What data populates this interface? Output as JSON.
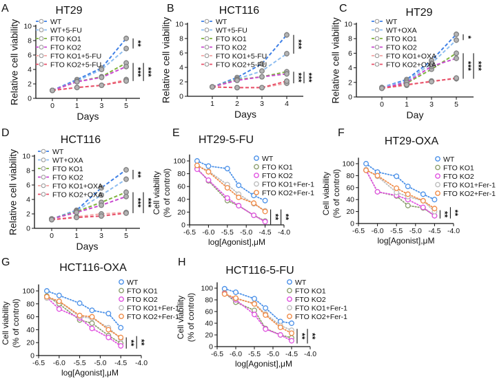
{
  "chart_data": [
    {
      "panel": "A",
      "type": "line",
      "title": "HT29",
      "xlabel": "Days",
      "ylabel": [
        "Relative cell viability"
      ],
      "x": [
        "0",
        "1",
        "3",
        "5"
      ],
      "ylim": [
        0,
        10
      ],
      "yticks": [
        0,
        2,
        4,
        6,
        8,
        10
      ],
      "series": [
        {
          "name": "WT",
          "color": "#3d7fe6",
          "values": [
            1.1,
            2.6,
            4.2,
            8.3
          ]
        },
        {
          "name": "WT+5-FU",
          "color": "#8dbdf0",
          "values": [
            1.1,
            2.4,
            4.0,
            6.9
          ]
        },
        {
          "name": "FTO KO1",
          "color": "#7db33a",
          "values": [
            1.1,
            2.3,
            3.0,
            4.9
          ]
        },
        {
          "name": "FTO KO2",
          "color": "#c948d0",
          "values": [
            1.1,
            2.3,
            2.9,
            4.4
          ]
        },
        {
          "name": "FTO KO1+5-FU",
          "color": "#f2a3a3",
          "values": [
            1.1,
            1.5,
            1.8,
            2.6
          ]
        },
        {
          "name": "FTO KO2+5-FU",
          "color": "#e8506a",
          "values": [
            1.1,
            1.5,
            1.8,
            2.4
          ]
        }
      ],
      "significance": [
        {
          "label": "**",
          "groups": [
            0,
            1
          ]
        },
        {
          "label": "***",
          "groups": [
            2,
            5
          ]
        },
        {
          "label": "***",
          "groups": [
            2,
            5
          ]
        }
      ]
    },
    {
      "panel": "B",
      "type": "line",
      "title": "HCT116",
      "xlabel": "Days",
      "ylabel": [
        "Relative cell viability"
      ],
      "x": [
        "1",
        "2",
        "3",
        "4"
      ],
      "ylim": [
        0,
        10
      ],
      "yticks": [
        0,
        2,
        4,
        6,
        8,
        10
      ],
      "series": [
        {
          "name": "WT",
          "color": "#3d7fe6",
          "values": [
            1.3,
            2.6,
            4.5,
            8.5
          ]
        },
        {
          "name": "WT+5-FU",
          "color": "#8dbdf0",
          "values": [
            1.3,
            2.4,
            3.5,
            5.9
          ]
        },
        {
          "name": "FTO KO1",
          "color": "#7db33a",
          "values": [
            1.3,
            2.3,
            2.7,
            3.4
          ]
        },
        {
          "name": "FTO KO2",
          "color": "#c948d0",
          "values": [
            1.3,
            2.2,
            2.7,
            3.1
          ]
        },
        {
          "name": "FTO KO1+5-FU",
          "color": "#f2a3a3",
          "values": [
            1.3,
            1.2,
            1.2,
            1.8
          ]
        },
        {
          "name": "FTO KO2+5-FU",
          "color": "#e8506a",
          "values": [
            1.3,
            1.2,
            1.2,
            2.1
          ]
        }
      ],
      "significance": [
        {
          "label": "***",
          "groups": [
            0,
            1
          ]
        },
        {
          "label": "***",
          "groups": [
            2,
            5
          ]
        },
        {
          "label": "***",
          "groups": [
            2,
            5
          ]
        }
      ]
    },
    {
      "panel": "C",
      "type": "line",
      "title": "HT29",
      "xlabel": "Day",
      "ylabel": [
        "Relative cell viability"
      ],
      "x": [
        "0",
        "1",
        "3",
        "5"
      ],
      "ylim": [
        0,
        10
      ],
      "yticks": [
        0,
        2,
        4,
        6,
        8,
        10
      ],
      "series": [
        {
          "name": "WT",
          "color": "#3d7fe6",
          "values": [
            1.3,
            2.4,
            5.0,
            8.6
          ]
        },
        {
          "name": "WT+OXA",
          "color": "#8dbdf0",
          "values": [
            1.3,
            2.2,
            4.6,
            7.8
          ]
        },
        {
          "name": "FTO KO1",
          "color": "#7db33a",
          "values": [
            1.2,
            1.9,
            3.8,
            6.0
          ]
        },
        {
          "name": "FTO KO2",
          "color": "#c948d0",
          "values": [
            1.2,
            2.0,
            4.2,
            5.3
          ]
        },
        {
          "name": "FTO KO1+OXA",
          "color": "#f2a3a3",
          "values": [
            1.2,
            1.6,
            2.2,
            2.5
          ]
        },
        {
          "name": "FTO KO2+OXA",
          "color": "#e8506a",
          "values": [
            1.2,
            1.7,
            2.1,
            2.6
          ]
        }
      ],
      "significance": [
        {
          "label": "*",
          "groups": [
            0,
            1
          ]
        },
        {
          "label": "***",
          "groups": [
            2,
            5
          ]
        },
        {
          "label": "***",
          "groups": [
            2,
            5
          ]
        }
      ]
    },
    {
      "panel": "D",
      "type": "line",
      "title": "HCT116",
      "xlabel": "Days",
      "ylabel": [
        "Relative cell viability"
      ],
      "x": [
        "0",
        "1",
        "3",
        "5"
      ],
      "ylim": [
        0,
        10
      ],
      "yticks": [
        0,
        2,
        4,
        6,
        8,
        10
      ],
      "series": [
        {
          "name": "WT",
          "color": "#3d7fe6",
          "values": [
            1.3,
            2.5,
            5.6,
            8.1
          ]
        },
        {
          "name": "WT+OXA",
          "color": "#8dbdf0",
          "values": [
            1.3,
            2.4,
            4.6,
            6.8
          ]
        },
        {
          "name": "FTO KO1",
          "color": "#7db33a",
          "values": [
            1.3,
            2.3,
            3.6,
            5.0
          ]
        },
        {
          "name": "FTO KO2",
          "color": "#c948d0",
          "values": [
            1.3,
            2.2,
            3.2,
            4.4
          ]
        },
        {
          "name": "FTO KO1+OXA",
          "color": "#f2a3a3",
          "values": [
            1.2,
            1.6,
            2.0,
            2.2
          ]
        },
        {
          "name": "FTO KO2+OXA",
          "color": "#e8506a",
          "values": [
            1.2,
            1.5,
            1.7,
            2.1
          ]
        }
      ],
      "significance": [
        {
          "label": "**",
          "groups": [
            0,
            1
          ]
        },
        {
          "label": "***",
          "groups": [
            2,
            5
          ]
        },
        {
          "label": "***",
          "groups": [
            2,
            5
          ]
        }
      ]
    },
    {
      "panel": "E",
      "type": "scatter",
      "title": "HT29-5-FU",
      "xlabel": "log[Agonist],μM",
      "ylabel": [
        "Cell viability",
        "(% of control)"
      ],
      "x": [
        -6.3,
        -6.0,
        -5.5,
        -5.2,
        -4.8,
        -4.5
      ],
      "xlim": [
        -6.5,
        -4.0
      ],
      "xticks": [
        "-6.5",
        "-6.0",
        "-5.5",
        "-5.0",
        "-4.5",
        "-4.0"
      ],
      "ylim": [
        0,
        100
      ],
      "yticks": [
        0,
        20,
        40,
        60,
        80,
        100
      ],
      "series": [
        {
          "name": "WT",
          "color": "#4a90e8",
          "values": [
            100,
            92,
            88,
            62,
            46,
            38
          ]
        },
        {
          "name": "FTO KO1",
          "color": "#8c9e6e",
          "values": [
            88,
            69,
            38,
            30,
            15,
            6
          ]
        },
        {
          "name": "FTO KO2",
          "color": "#e052e0",
          "values": [
            87,
            70,
            42,
            30,
            15,
            5
          ]
        },
        {
          "name": "FTO KO1+Fer-1",
          "color": "#bdbdbd",
          "values": [
            93,
            84,
            63,
            48,
            33,
            22
          ]
        },
        {
          "name": "FTO KO2+Fer-1",
          "color": "#f08a45",
          "values": [
            93,
            83,
            58,
            43,
            34,
            21
          ]
        }
      ],
      "significance": [
        {
          "label": "**",
          "groups": [
            1,
            3
          ]
        },
        {
          "label": "**",
          "groups": [
            2,
            4
          ]
        }
      ]
    },
    {
      "panel": "F",
      "type": "scatter",
      "title": "HT29-OXA",
      "xlabel": "log[Agonist],μM",
      "ylabel": [
        "Cell viability",
        "(% of control)"
      ],
      "x": [
        -6.3,
        -6.0,
        -5.5,
        -5.2,
        -4.8,
        -4.5
      ],
      "xlim": [
        -6.5,
        -4.0
      ],
      "xticks": [
        "-6.5",
        "-6.0",
        "-5.5",
        "-5.0",
        "-4.5",
        "-4.0"
      ],
      "ylim": [
        0,
        100
      ],
      "yticks": [
        0,
        20,
        40,
        60,
        80,
        100
      ],
      "series": [
        {
          "name": "WT",
          "color": "#4a90e8",
          "values": [
            100,
            86,
            79,
            62,
            49,
            40
          ]
        },
        {
          "name": "FTO KO1",
          "color": "#8c9e6e",
          "values": [
            89,
            53,
            46,
            30,
            26,
            13
          ]
        },
        {
          "name": "FTO KO2",
          "color": "#e052e0",
          "values": [
            89,
            53,
            47,
            40,
            27,
            13
          ]
        },
        {
          "name": "FTO KO1+Fer-1",
          "color": "#bdbdbd",
          "values": [
            90,
            79,
            52,
            45,
            38,
            20
          ]
        },
        {
          "name": "FTO KO2+Fer-1",
          "color": "#f08a45",
          "values": [
            89,
            80,
            59,
            49,
            38,
            25
          ]
        }
      ],
      "significance": [
        {
          "label": "**",
          "groups": [
            1,
            3
          ]
        },
        {
          "label": "**",
          "groups": [
            2,
            4
          ]
        }
      ]
    },
    {
      "panel": "G",
      "type": "scatter",
      "title": "HCT116-OXA",
      "xlabel": "log[Agonist],μM",
      "ylabel": [
        "Cell viability",
        "(% of control)"
      ],
      "x": [
        -6.3,
        -6.0,
        -5.5,
        -5.2,
        -4.8,
        -4.5
      ],
      "xlim": [
        -6.5,
        -4.0
      ],
      "xticks": [
        "-6.5",
        "-6.0",
        "-5.5",
        "-5.0",
        "-4.5",
        "-4.0"
      ],
      "ylim": [
        0,
        100
      ],
      "yticks": [
        0,
        20,
        40,
        60,
        80,
        100
      ],
      "series": [
        {
          "name": "WT",
          "color": "#4a90e8",
          "values": [
            100,
            93,
            81,
            70,
            65,
            43
          ]
        },
        {
          "name": "FTO KO1",
          "color": "#8c9e6e",
          "values": [
            92,
            80,
            55,
            50,
            31,
            19
          ]
        },
        {
          "name": "FTO KO2",
          "color": "#e052e0",
          "values": [
            90,
            72,
            58,
            42,
            28,
            15
          ]
        },
        {
          "name": "FTO KO1+Fer-1",
          "color": "#bdbdbd",
          "values": [
            89,
            84,
            60,
            58,
            43,
            26
          ]
        },
        {
          "name": "FTO KO2+Fer-1",
          "color": "#f08a45",
          "values": [
            91,
            84,
            62,
            60,
            40,
            28
          ]
        }
      ],
      "significance": [
        {
          "label": "**",
          "groups": [
            1,
            3
          ]
        },
        {
          "label": "**",
          "groups": [
            2,
            4
          ]
        }
      ]
    },
    {
      "panel": "H",
      "type": "scatter",
      "title": "HCT116-5-FU",
      "xlabel": "log[Agonist],μM",
      "ylabel": [
        "Cell viability",
        "(% of control)"
      ],
      "x": [
        -6.3,
        -6.0,
        -5.5,
        -5.2,
        -4.8,
        -4.5
      ],
      "xlim": [
        -6.5,
        -4.0
      ],
      "xticks": [
        "-6.5",
        "-6.0",
        "-5.5",
        "-5.0",
        "-4.5",
        "-4.0"
      ],
      "ylim": [
        0,
        100
      ],
      "yticks": [
        0,
        20,
        40,
        60,
        80,
        100
      ],
      "series": [
        {
          "name": "WT",
          "color": "#4a90e8",
          "values": [
            99,
            93,
            82,
            66,
            43,
            40
          ]
        },
        {
          "name": "FTO KO1",
          "color": "#8c9e6e",
          "values": [
            92,
            76,
            62,
            31,
            20,
            15
          ]
        },
        {
          "name": "FTO KO2",
          "color": "#e052e0",
          "values": [
            91,
            80,
            55,
            30,
            20,
            10
          ]
        },
        {
          "name": "FTO KO1+Fer-1",
          "color": "#bdbdbd",
          "values": [
            90,
            82,
            74,
            56,
            36,
            28
          ]
        },
        {
          "name": "FTO KO2+Fer-1",
          "color": "#f08a45",
          "values": [
            90,
            83,
            73,
            54,
            33,
            23
          ]
        }
      ],
      "significance": [
        {
          "label": "**",
          "groups": [
            1,
            3
          ]
        },
        {
          "label": "**",
          "groups": [
            2,
            4
          ]
        }
      ]
    }
  ]
}
